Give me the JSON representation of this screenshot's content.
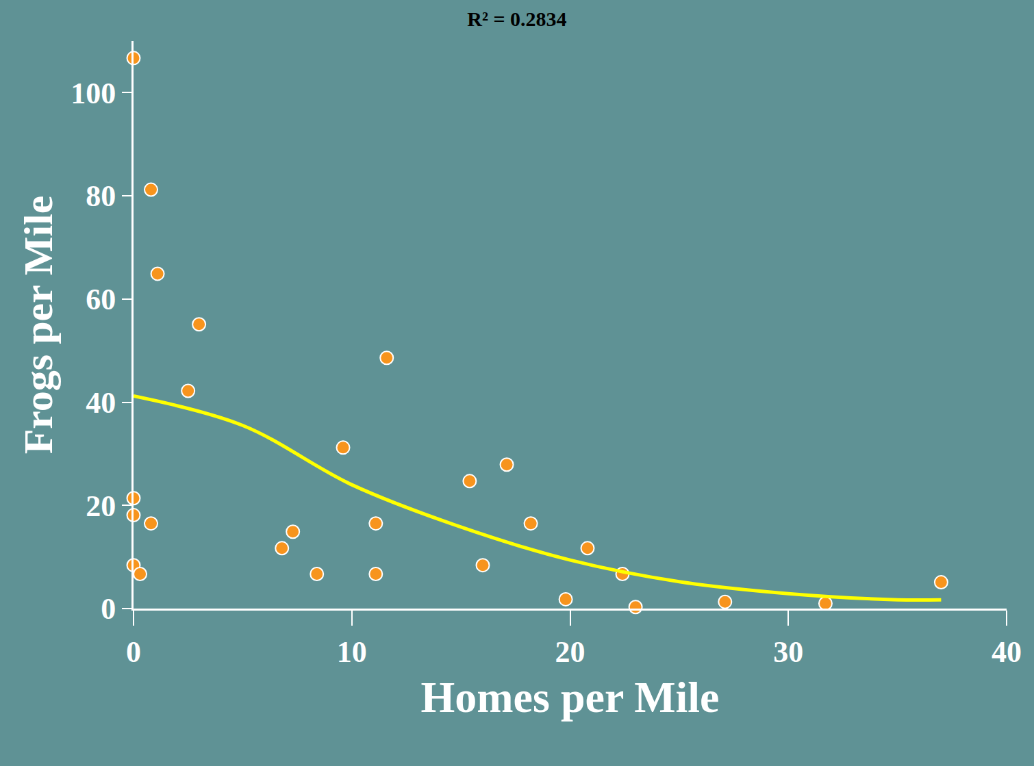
{
  "chart_data": {
    "type": "scatter",
    "title": "R² = 0.2834",
    "x_label": "Homes per Mile",
    "y_label": "Frogs per Mile",
    "series": [
      {
        "type": "scatter",
        "marker": "circle",
        "color": "#f7941d",
        "x": [
          0,
          0.8,
          1.1,
          3.0,
          2.5,
          11.6,
          0,
          0,
          0.8,
          0,
          0.3,
          6.8,
          7.3,
          8.4,
          9.6,
          11.1,
          11.1,
          15.4,
          16.0,
          17.1,
          18.2,
          19.8,
          20.8,
          22.4,
          23.0,
          27.1,
          31.7,
          37.0
        ],
        "values": [
          106.7,
          81.2,
          64.9,
          55.1,
          42.2,
          48.6,
          21.4,
          18.1,
          16.5,
          8.4,
          6.7,
          11.7,
          14.9,
          6.7,
          31.2,
          6.7,
          16.5,
          24.7,
          8.4,
          27.9,
          16.5,
          1.8,
          11.7,
          6.7,
          0.3,
          1.3,
          1.0,
          5.1
        ]
      },
      {
        "type": "line",
        "color": "#ffff00",
        "x": [
          0,
          5,
          10,
          15,
          20,
          25,
          30,
          35,
          37
        ],
        "values": [
          41.2,
          35.5,
          24.0,
          15.8,
          9.4,
          5.2,
          2.9,
          1.7,
          1.7
        ]
      }
    ],
    "xlim": [
      0,
      40
    ],
    "ylim": [
      0,
      110
    ],
    "xticks": [
      0,
      10,
      20,
      30,
      40
    ],
    "yticks": [
      0,
      20,
      40,
      60,
      80,
      100
    ],
    "grid": false
  }
}
